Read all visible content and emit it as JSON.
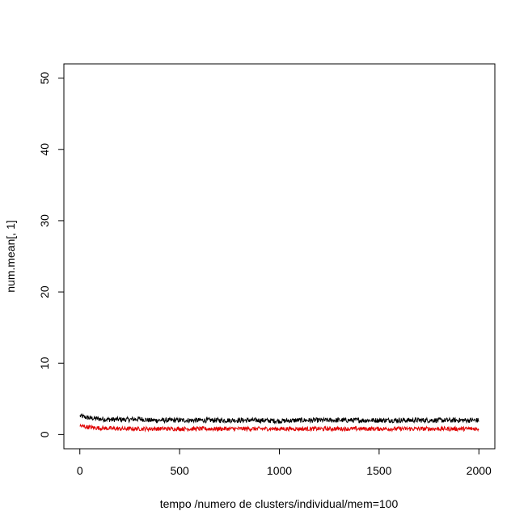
{
  "chart_data": {
    "type": "line",
    "title": "",
    "xlabel": "tempo /numero de clusters/individual/mem=100",
    "ylabel": "num.mean[, 1]",
    "xlim": [
      -80,
      2080
    ],
    "ylim": [
      -2,
      52
    ],
    "x_ticks": [
      0,
      500,
      1000,
      1500,
      2000
    ],
    "x_tick_labels": [
      "0",
      "500",
      "1000",
      "1500",
      "2000"
    ],
    "y_ticks": [
      0,
      10,
      20,
      30,
      40,
      50
    ],
    "y_tick_labels": [
      "0",
      "10",
      "20",
      "30",
      "40",
      "50"
    ],
    "x_range": [
      1,
      2000
    ],
    "grid": false,
    "series": [
      {
        "color": "#000000",
        "x": [
          1,
          50,
          100,
          150,
          200,
          250,
          300,
          350,
          400,
          450,
          500,
          600,
          700,
          800,
          900,
          1000,
          1100,
          1200,
          1300,
          1400,
          1500,
          1600,
          1700,
          1800,
          1900,
          2000
        ],
        "values": [
          2.6,
          2.3,
          2.2,
          2.1,
          2.1,
          2.1,
          2.2,
          2.0,
          2.0,
          2.0,
          2.0,
          2.0,
          2.0,
          2.0,
          2.0,
          1.9,
          2.0,
          2.0,
          2.0,
          2.0,
          2.0,
          2.0,
          2.0,
          2.0,
          2.0,
          2.0
        ],
        "noise_amplitude": 0.35
      },
      {
        "color": "#e00000",
        "x": [
          1,
          50,
          100,
          200,
          300,
          400,
          500,
          600,
          700,
          800,
          900,
          1000,
          1100,
          1200,
          1300,
          1400,
          1500,
          1600,
          1700,
          1800,
          1900,
          2000
        ],
        "values": [
          1.2,
          1.0,
          0.9,
          0.8,
          0.8,
          0.8,
          0.8,
          0.8,
          0.8,
          0.8,
          0.8,
          0.8,
          0.8,
          0.8,
          0.8,
          0.8,
          0.8,
          0.8,
          0.8,
          0.8,
          0.8,
          0.8
        ],
        "noise_amplitude": 0.3
      }
    ]
  }
}
